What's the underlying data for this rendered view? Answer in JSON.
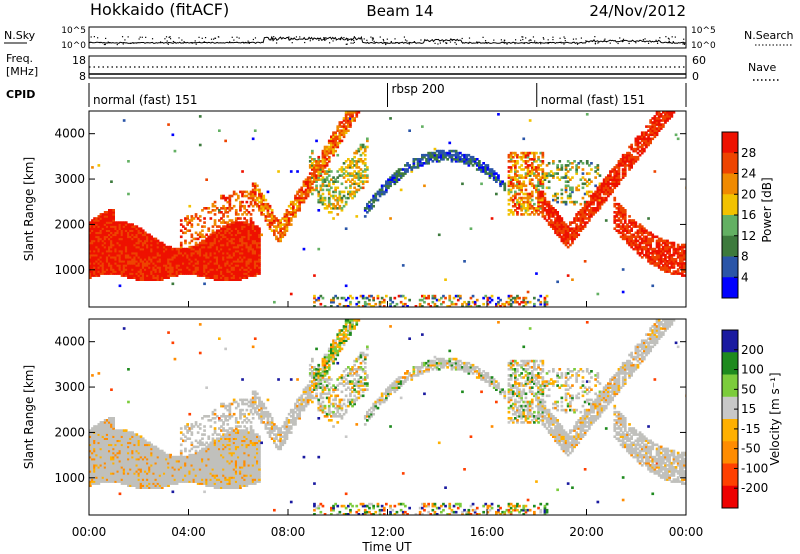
{
  "header": {
    "radar": "Hokkaido (fitACF)",
    "beam": "Beam 14",
    "date": "24/Nov/2012"
  },
  "noise_panel": {
    "left_label": "N.Sky",
    "right_label": "N.Search",
    "ticks": [
      "10^5",
      "10^0"
    ]
  },
  "freq_panel": {
    "left_label_1": "Freq.",
    "left_label_2": "[MHz]",
    "left_ticks": [
      "18",
      "8"
    ],
    "right_label": "Nave",
    "right_ticks": [
      "60",
      "0"
    ]
  },
  "cpid_panel": {
    "label": "CPID",
    "segments": [
      {
        "label": "normal (fast) 151",
        "start_hour": 0
      },
      {
        "label": "rbsp 200",
        "start_hour": 12
      },
      {
        "label": "normal (fast) 151",
        "start_hour": 18
      }
    ]
  },
  "colors": {
    "power_scale": [
      "#0000ff",
      "#2a55a8",
      "#3d7a3d",
      "#63b063",
      "#f2c200",
      "#f08a00",
      "#ee4400",
      "#ee1100"
    ],
    "velocity_scale": [
      "#ee0000",
      "#ff4000",
      "#ff8c00",
      "#ffb000",
      "#c8c8c8",
      "#7ccc3c",
      "#1e8a1e",
      "#1a1aa0"
    ],
    "ground_scatter": "#c0c0bc"
  },
  "chart_data": [
    {
      "type": "heatmap",
      "name": "power",
      "ylabel": "Slant Range [km]",
      "x_unit": "hours UT",
      "xlim": [
        0,
        24
      ],
      "ylim": [
        180,
        4500
      ],
      "yticks": [
        1000,
        2000,
        3000,
        4000
      ],
      "colorbar": {
        "label": "Power [dB]",
        "ticks": [
          "28",
          "24",
          "20",
          "16",
          "12",
          "8",
          "4"
        ],
        "range": [
          0,
          32
        ]
      },
      "echo_regions": [
        {
          "from_hour": 0.0,
          "to_hour": 6.7,
          "range_low": 800,
          "range_high": 2100,
          "dominant_power_db": 29
        },
        {
          "from_hour": 6.5,
          "to_hour": 9.2,
          "range_low": 1500,
          "range_high": 3400,
          "dominant_power_db": 24
        },
        {
          "from_hour": 9.0,
          "to_hour": 11.0,
          "range_low": 2200,
          "range_high": 4200,
          "dominant_power_db": 18
        },
        {
          "from_hour": 11.0,
          "to_hour": 16.6,
          "range_low": 2400,
          "range_high": 3700,
          "dominant_power_db": 5
        },
        {
          "from_hour": 16.8,
          "to_hour": 18.0,
          "range_low": 2200,
          "range_high": 3600,
          "dominant_power_db": 22
        },
        {
          "from_hour": 18.0,
          "to_hour": 24.0,
          "range_low": 900,
          "range_high": 3300,
          "dominant_power_db": 29
        }
      ]
    },
    {
      "type": "heatmap",
      "name": "velocity",
      "ylabel": "Slant Range [km]",
      "xlabel": "Time UT",
      "x_unit": "hours UT",
      "xlim": [
        0,
        24
      ],
      "ylim": [
        180,
        4500
      ],
      "yticks": [
        1000,
        2000,
        3000,
        4000
      ],
      "xticks": [
        "00:00",
        "04:00",
        "08:00",
        "12:00",
        "16:00",
        "20:00",
        "00:00"
      ],
      "colorbar": {
        "label": "Velocity [m s⁻¹]",
        "ticks": [
          "200",
          "100",
          "50",
          "15",
          "-15",
          "-50",
          "-100",
          "-200"
        ],
        "range": [
          -250,
          250
        ]
      },
      "echo_regions": [
        {
          "from_hour": 0.0,
          "to_hour": 7.0,
          "range_low": 800,
          "range_high": 2300,
          "dominant_velocity_ms": -20
        },
        {
          "from_hour": 7.0,
          "to_hour": 11.0,
          "range_low": 1500,
          "range_high": 4000,
          "dominant_velocity_ms": 0
        },
        {
          "from_hour": 11.0,
          "to_hour": 16.6,
          "range_low": 2500,
          "range_high": 3700,
          "dominant_velocity_ms": 0
        },
        {
          "from_hour": 17.0,
          "to_hour": 24.0,
          "range_low": 1000,
          "range_high": 3400,
          "dominant_velocity_ms": 0
        }
      ]
    }
  ]
}
